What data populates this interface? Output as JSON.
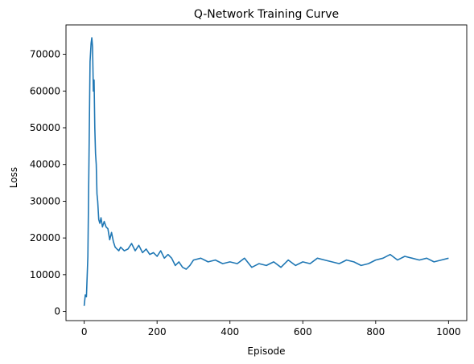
{
  "chart_data": {
    "type": "line",
    "title": "Q-Network Training Curve",
    "xlabel": "Episode",
    "ylabel": "Loss",
    "xlim": [
      -50,
      1050
    ],
    "ylim": [
      -2500,
      78000
    ],
    "xticks": [
      0,
      200,
      400,
      600,
      800,
      1000
    ],
    "yticks": [
      0,
      10000,
      20000,
      30000,
      40000,
      50000,
      60000,
      70000
    ],
    "grid": false,
    "legend": "none",
    "series": [
      {
        "color": "#1f77b4",
        "x": [
          0,
          3,
          6,
          10,
          13,
          16,
          19,
          21,
          23,
          25,
          27,
          29,
          31,
          33,
          35,
          37,
          40,
          43,
          46,
          50,
          55,
          60,
          65,
          70,
          75,
          80,
          85,
          90,
          95,
          100,
          110,
          120,
          130,
          140,
          150,
          160,
          170,
          180,
          190,
          200,
          210,
          220,
          230,
          240,
          250,
          260,
          270,
          280,
          290,
          300,
          320,
          340,
          360,
          380,
          400,
          420,
          440,
          460,
          480,
          500,
          520,
          540,
          560,
          580,
          600,
          620,
          640,
          660,
          680,
          700,
          720,
          740,
          760,
          780,
          800,
          820,
          840,
          860,
          880,
          900,
          920,
          940,
          960,
          980,
          1000
        ],
        "values": [
          1500,
          4500,
          4000,
          15000,
          40000,
          68000,
          73000,
          74500,
          72000,
          60000,
          63000,
          50000,
          43000,
          40000,
          32000,
          30000,
          25000,
          24000,
          25500,
          23000,
          24500,
          23000,
          22500,
          19500,
          21500,
          19000,
          17500,
          17000,
          16500,
          17500,
          16500,
          17000,
          18500,
          16500,
          18000,
          16000,
          17000,
          15500,
          16000,
          15000,
          16500,
          14500,
          15500,
          14500,
          12500,
          13500,
          12000,
          11500,
          12500,
          14000,
          14500,
          13500,
          14000,
          13000,
          13500,
          13000,
          14500,
          12000,
          13000,
          12500,
          13500,
          12000,
          14000,
          12500,
          13500,
          13000,
          14500,
          14000,
          13500,
          13000,
          14000,
          13500,
          12500,
          13000,
          14000,
          14500,
          15500,
          14000,
          15000,
          14500,
          14000,
          14500,
          13500,
          14000,
          14500
        ]
      }
    ]
  }
}
